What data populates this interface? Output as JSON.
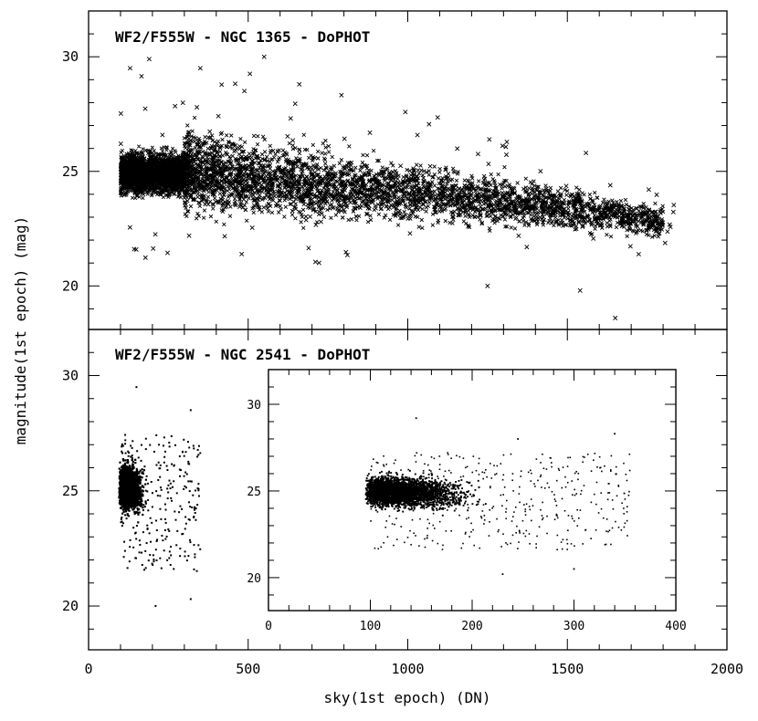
{
  "chart_data": [
    {
      "type": "scatter",
      "panel": "top",
      "title": "WF2/F555W - NGC 1365 - DoPHOT",
      "xlabel": "sky(1st epoch) (DN)",
      "ylabel": "magnitude(1st epoch) (mag)",
      "xlim": [
        0,
        2000
      ],
      "ylim": [
        18.1,
        32
      ],
      "y_inverted": false,
      "xticks": [
        0,
        500,
        1000,
        1500,
        2000
      ],
      "yticks": [
        20,
        25,
        30
      ],
      "marker": "x",
      "description_points": {
        "x_range": [
          90,
          1880
        ],
        "dense_core": {
          "x": [
            100,
            300
          ],
          "y": [
            22.0,
            27.8
          ]
        },
        "envelope_upper": [
          [
            100,
            28.5
          ],
          [
            500,
            27.5
          ],
          [
            1000,
            26.2
          ],
          [
            1500,
            25.0
          ],
          [
            1800,
            24.0
          ]
        ],
        "envelope_lower": [
          [
            100,
            22.0
          ],
          [
            500,
            22.0
          ],
          [
            1000,
            22.0
          ],
          [
            1500,
            21.8
          ],
          [
            1800,
            21.5
          ]
        ],
        "outliers": [
          [
            130,
            29.5
          ],
          [
            190,
            29.9
          ],
          [
            350,
            29.5
          ],
          [
            550,
            30.0
          ],
          [
            1650,
            18.6
          ],
          [
            1540,
            19.8
          ],
          [
            1250,
            20.0
          ]
        ]
      }
    },
    {
      "type": "scatter",
      "panel": "bottom",
      "title": "WF2/F555W - NGC 2541 - DoPHOT",
      "xlabel": "sky(1st epoch) (DN)",
      "ylabel": "magnitude(1st epoch) (mag)",
      "xlim": [
        0,
        2000
      ],
      "ylim": [
        18.1,
        32
      ],
      "xticks": [
        0,
        500,
        1000,
        1500,
        2000
      ],
      "yticks": [
        20,
        25,
        30
      ],
      "marker": "dot",
      "description_points": {
        "x_range": [
          90,
          360
        ],
        "dense_core": {
          "x": [
            95,
            220
          ],
          "y": [
            21.5,
            27.5
          ]
        },
        "outliers": [
          [
            150,
            29.5
          ],
          [
            320,
            28.5
          ],
          [
            210,
            20.0
          ],
          [
            320,
            20.3
          ]
        ]
      }
    },
    {
      "type": "scatter",
      "panel": "inset",
      "title": "",
      "xlabel": "",
      "ylabel": "",
      "xlim": [
        0,
        400
      ],
      "ylim": [
        18.1,
        32
      ],
      "xticks": [
        0,
        100,
        200,
        300,
        400
      ],
      "yticks": [
        20,
        25,
        30
      ],
      "marker": "dot",
      "description_points": {
        "x_range": [
          90,
          360
        ],
        "dense_core": {
          "x": [
            95,
            260
          ],
          "y": [
            21.5,
            27.2
          ]
        },
        "outliers": [
          [
            145,
            29.2
          ],
          [
            245,
            28.0
          ],
          [
            340,
            28.3
          ],
          [
            230,
            20.2
          ],
          [
            300,
            20.5
          ]
        ]
      }
    }
  ]
}
